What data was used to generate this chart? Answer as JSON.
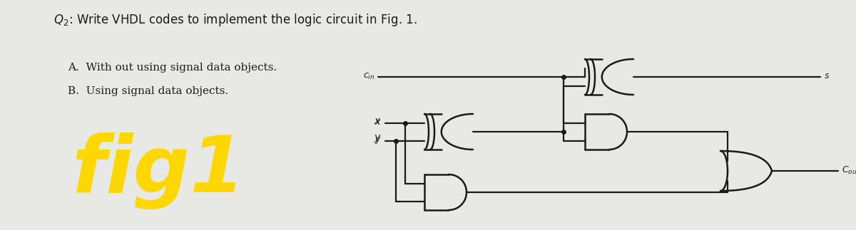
{
  "bg_color": "#e8e8e4",
  "line_color": "#1a1a1a",
  "yellow_color": "#FFD700",
  "fig_width": 12.0,
  "fig_height": 3.23,
  "dpi": 100,
  "title": "Q₂: Write VHDL codes to implement the logic circuit in Fig. 1.",
  "lineA": "A.  With out using signal data objects.",
  "lineB": "B.  Using signal data objects.",
  "cin_text": "c",
  "cin_sub": "in",
  "x_text": "x",
  "y_text": "y",
  "s_text": "s",
  "cout_text": "C",
  "cout_sub": "out",
  "fig1_text": "fig1"
}
